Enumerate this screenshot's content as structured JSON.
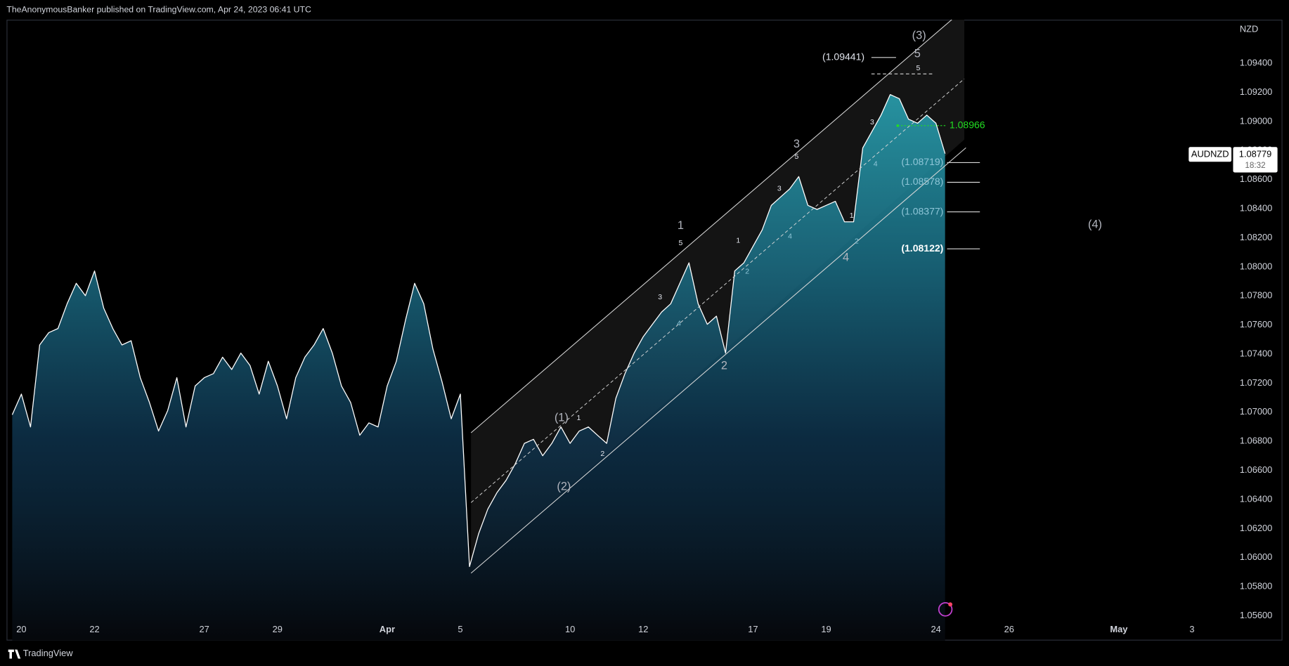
{
  "header": "TheAnonymousBanker published on TradingView.com, Apr 24, 2023 06:41 UTC",
  "footer": "TradingView",
  "chart_data": {
    "type": "area",
    "symbol": "AUDNZD",
    "currency": "NZD",
    "countdown": "18:32",
    "color": "#ffffff",
    "grid": false,
    "categories": [
      null,
      "20",
      null,
      null,
      null,
      null,
      null,
      null,
      null,
      "22",
      null,
      null,
      null,
      null,
      null,
      null,
      null,
      null,
      null,
      null,
      null,
      "27",
      null,
      null,
      null,
      null,
      null,
      null,
      null,
      "29",
      null,
      null,
      null,
      null,
      null,
      null,
      null,
      null,
      null,
      null,
      null,
      "Apr",
      null,
      null,
      null,
      null,
      null,
      null,
      null,
      "5",
      null,
      null,
      null,
      null,
      null,
      null,
      null,
      null,
      null,
      null,
      null,
      "10",
      null,
      null,
      null,
      null,
      null,
      null,
      null,
      "12",
      null,
      null,
      null,
      null,
      null,
      null,
      null,
      null,
      null,
      null,
      null,
      "17",
      null,
      null,
      null,
      null,
      null,
      null,
      null,
      "19",
      null,
      null,
      null,
      null,
      null,
      null,
      null,
      null,
      null,
      null,
      null,
      "24",
      null,
      null,
      null,
      null,
      null,
      null,
      null,
      "26",
      null,
      null,
      null,
      null,
      null,
      null,
      null,
      null,
      null,
      null,
      null,
      "May",
      null,
      null,
      null,
      null,
      null,
      null,
      null,
      "3",
      null,
      null,
      null,
      null,
      null
    ],
    "values": [
      1.06983,
      1.07125,
      1.06899,
      1.07463,
      1.07548,
      1.07576,
      1.07746,
      1.07887,
      1.07802,
      1.07972,
      1.07717,
      1.07576,
      1.07463,
      1.07492,
      1.07238,
      1.07068,
      1.06871,
      1.07012,
      1.07238,
      1.06899,
      1.07181,
      1.07238,
      1.07266,
      1.07379,
      1.07294,
      1.07407,
      1.07322,
      1.07125,
      1.07351,
      1.07181,
      1.06955,
      1.07238,
      1.07379,
      1.07463,
      1.07576,
      1.07407,
      1.07181,
      1.07068,
      1.06842,
      1.06927,
      1.06899,
      1.07181,
      1.07351,
      1.07633,
      1.07887,
      1.07746,
      1.07435,
      1.07209,
      1.06955,
      1.07125,
      1.05939,
      1.06165,
      1.06334,
      1.06447,
      1.06532,
      1.06645,
      1.06786,
      1.06814,
      1.06701,
      1.06786,
      1.06899,
      1.06786,
      1.06871,
      1.06899,
      1.06842,
      1.06786,
      1.07096,
      1.07266,
      1.07407,
      1.0752,
      1.07605,
      1.07689,
      1.07746,
      1.07887,
      1.08028,
      1.07746,
      1.07605,
      1.07661,
      1.07407,
      1.07972,
      1.08028,
      1.08141,
      1.08254,
      1.08423,
      1.0848,
      1.08536,
      1.08621,
      1.08423,
      1.08395,
      1.08423,
      1.08451,
      1.0831,
      1.0831,
      1.08818,
      1.08931,
      1.09044,
      1.09185,
      1.09157,
      1.09016,
      1.08988,
      1.09044,
      1.08988,
      1.08779,
      null,
      null,
      null,
      null,
      null,
      null,
      null,
      null,
      null,
      null,
      null,
      null,
      null,
      null,
      null,
      null,
      null,
      null,
      null,
      null,
      null,
      null,
      null,
      null,
      null,
      null,
      null,
      null,
      null,
      null,
      null,
      null
    ],
    "ylim": [
      1.0543,
      1.097
    ],
    "yticks": [
      {
        "value": 1.056,
        "label": "1.05600"
      },
      {
        "value": 1.058,
        "label": "1.05800"
      },
      {
        "value": 1.06,
        "label": "1.06000"
      },
      {
        "value": 1.062,
        "label": "1.06200"
      },
      {
        "value": 1.064,
        "label": "1.06400"
      },
      {
        "value": 1.066,
        "label": "1.06600"
      },
      {
        "value": 1.068,
        "label": "1.06800"
      },
      {
        "value": 1.07,
        "label": "1.07000"
      },
      {
        "value": 1.072,
        "label": "1.07200"
      },
      {
        "value": 1.074,
        "label": "1.07400"
      },
      {
        "value": 1.076,
        "label": "1.07600"
      },
      {
        "value": 1.078,
        "label": "1.07800"
      },
      {
        "value": 1.08,
        "label": "1.08000"
      },
      {
        "value": 1.082,
        "label": "1.08200"
      },
      {
        "value": 1.084,
        "label": "1.08400"
      },
      {
        "value": 1.086,
        "label": "1.08600"
      },
      {
        "value": 1.088,
        "label": "1.08800"
      },
      {
        "value": 1.09,
        "label": "1.09000"
      },
      {
        "value": 1.092,
        "label": "1.09200"
      },
      {
        "value": 1.094,
        "label": "1.09400"
      }
    ],
    "annotations": [
      "(3)",
      "5",
      "5",
      "(1.09441)",
      "1.08966",
      "3",
      "5",
      "(1.08719)",
      "(1.08578)",
      "(1.08377)",
      "(1.08122)",
      "(4)",
      "1",
      "5",
      "3",
      "4",
      "1",
      "2",
      "3",
      "4",
      "2",
      "4",
      "3",
      "4",
      "1",
      "2",
      "(1)",
      "1",
      "2",
      "(2)"
    ]
  }
}
